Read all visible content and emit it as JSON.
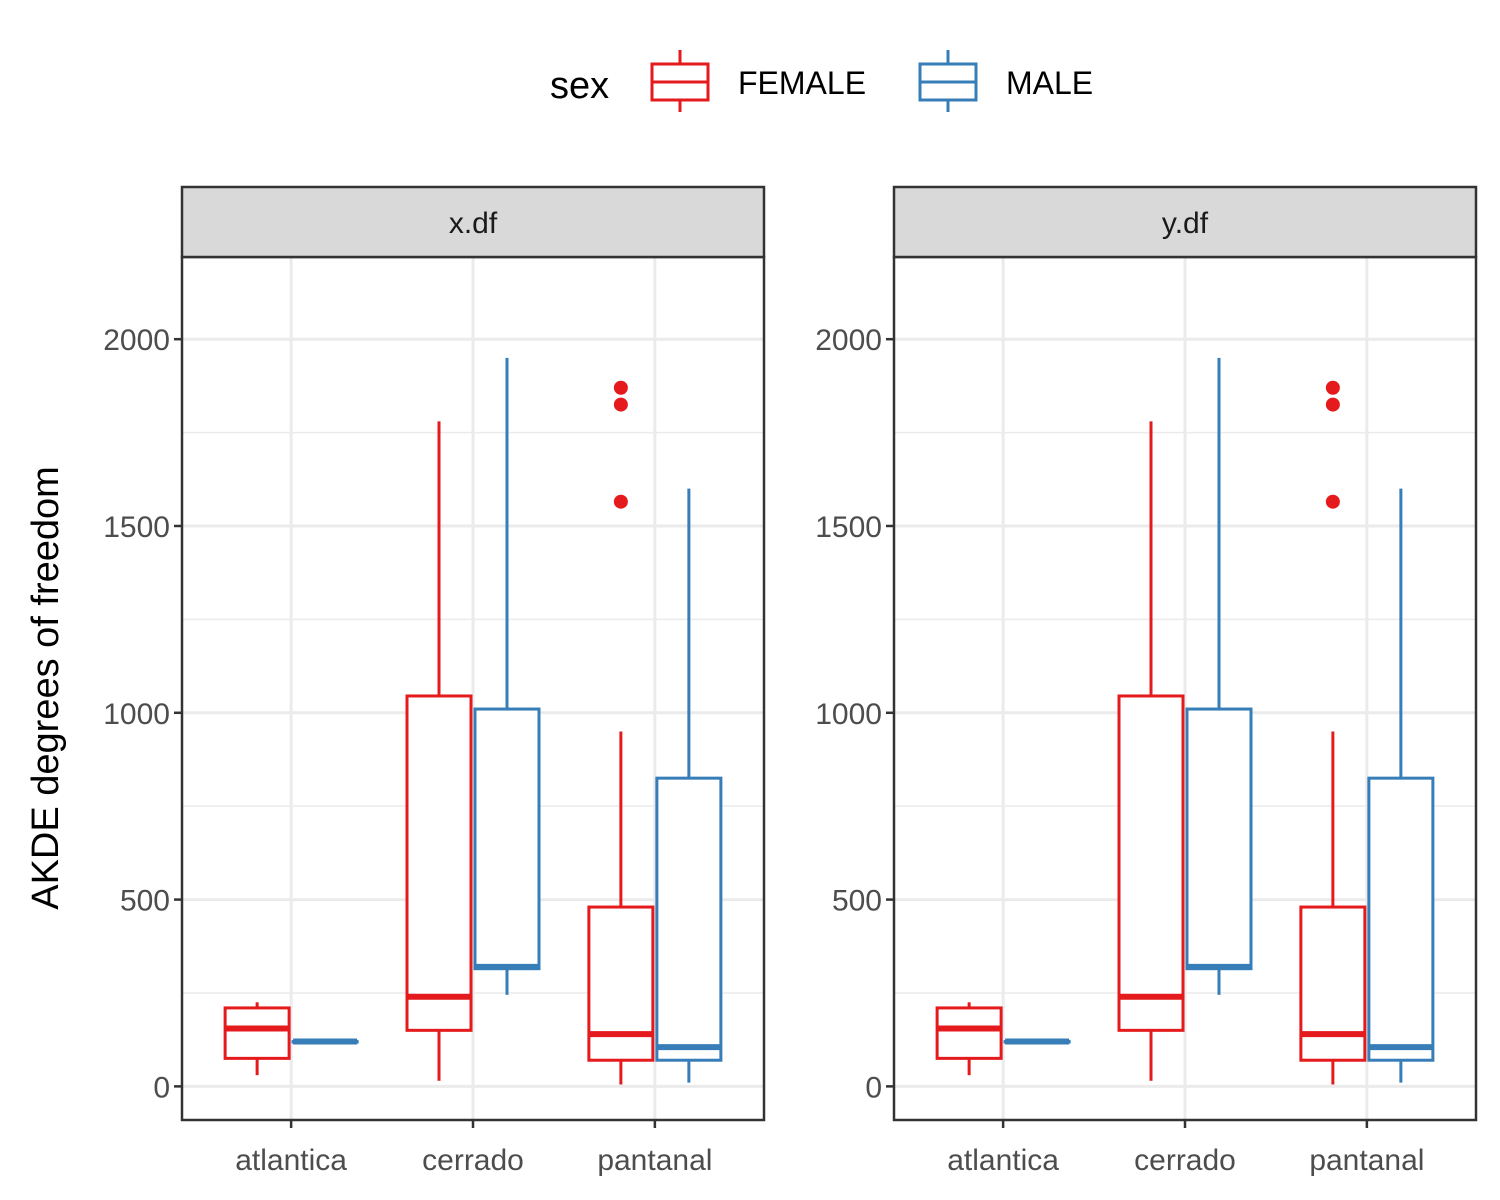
{
  "chart_data": {
    "type": "boxplot",
    "ylabel": "AKDE degrees of freedom",
    "xlabel": "",
    "categories": [
      "atlantica",
      "cerrado",
      "pantanal"
    ],
    "ylim": [
      -90,
      2220
    ],
    "yticks": [
      0,
      500,
      1000,
      1500,
      2000
    ],
    "ytick_labels": [
      "0",
      "500",
      "1000",
      "1500",
      "2000"
    ],
    "grid": true,
    "legend": {
      "title": "sex",
      "position": "top",
      "entries": [
        {
          "name": "FEMALE",
          "color": "#e41a1c"
        },
        {
          "name": "MALE",
          "color": "#377eb8"
        }
      ]
    },
    "series_colors": {
      "FEMALE": "#e41a1c",
      "MALE": "#377eb8"
    },
    "panels": [
      {
        "label": "x.df",
        "boxes": [
          {
            "category": "atlantica",
            "sex": "FEMALE",
            "min": 30,
            "q1": 75,
            "median": 155,
            "q3": 210,
            "max": 225,
            "outliers": []
          },
          {
            "category": "atlantica",
            "sex": "MALE",
            "min": 120,
            "q1": 120,
            "median": 120,
            "q3": 120,
            "max": 120,
            "outliers": []
          },
          {
            "category": "cerrado",
            "sex": "FEMALE",
            "min": 15,
            "q1": 150,
            "median": 240,
            "q3": 1045,
            "max": 1780,
            "outliers": []
          },
          {
            "category": "cerrado",
            "sex": "MALE",
            "min": 245,
            "q1": 315,
            "median": 320,
            "q3": 1010,
            "max": 1950,
            "outliers": []
          },
          {
            "category": "pantanal",
            "sex": "FEMALE",
            "min": 5,
            "q1": 70,
            "median": 140,
            "q3": 480,
            "max": 950,
            "outliers": [
              1565,
              1825,
              1870
            ]
          },
          {
            "category": "pantanal",
            "sex": "MALE",
            "min": 10,
            "q1": 70,
            "median": 105,
            "q3": 825,
            "max": 1600,
            "outliers": []
          }
        ]
      },
      {
        "label": "y.df",
        "boxes": [
          {
            "category": "atlantica",
            "sex": "FEMALE",
            "min": 30,
            "q1": 75,
            "median": 155,
            "q3": 210,
            "max": 225,
            "outliers": []
          },
          {
            "category": "atlantica",
            "sex": "MALE",
            "min": 120,
            "q1": 120,
            "median": 120,
            "q3": 120,
            "max": 120,
            "outliers": []
          },
          {
            "category": "cerrado",
            "sex": "FEMALE",
            "min": 15,
            "q1": 150,
            "median": 240,
            "q3": 1045,
            "max": 1780,
            "outliers": []
          },
          {
            "category": "cerrado",
            "sex": "MALE",
            "min": 245,
            "q1": 315,
            "median": 320,
            "q3": 1010,
            "max": 1950,
            "outliers": []
          },
          {
            "category": "pantanal",
            "sex": "FEMALE",
            "min": 5,
            "q1": 70,
            "median": 140,
            "q3": 480,
            "max": 950,
            "outliers": [
              1565,
              1825,
              1870
            ]
          },
          {
            "category": "pantanal",
            "sex": "MALE",
            "min": 10,
            "q1": 70,
            "median": 105,
            "q3": 825,
            "max": 1600,
            "outliers": []
          }
        ]
      }
    ]
  }
}
